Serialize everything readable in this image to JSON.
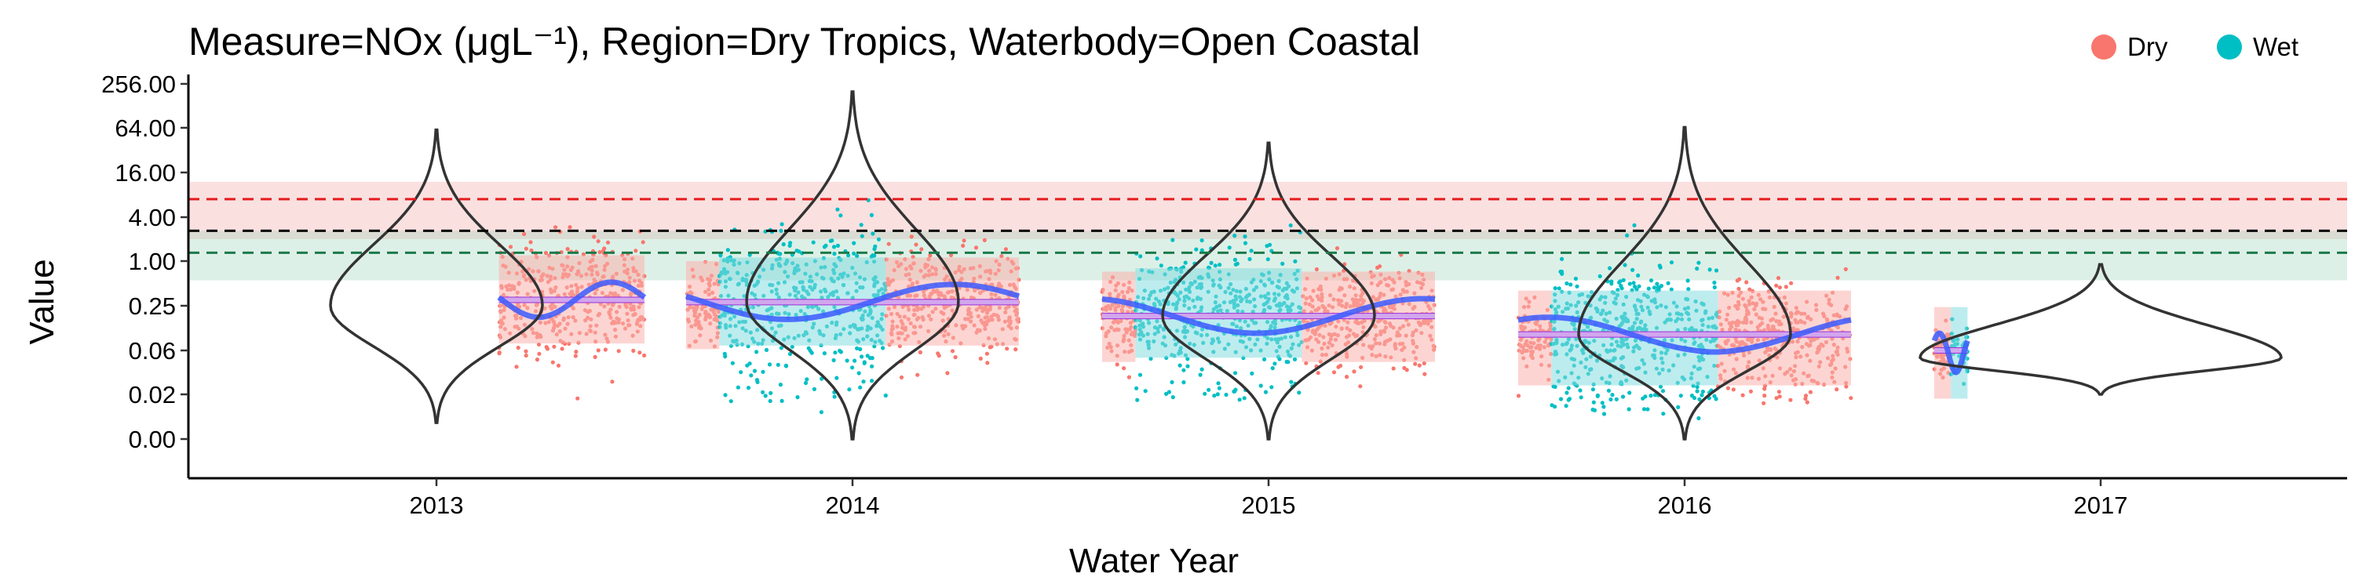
{
  "chart_data": {
    "type": "scatter",
    "title": "Measure=NOx (μgL⁻¹), Region=Dry Tropics, Waterbody=Open Coastal",
    "xlabel": "Water Year",
    "ylabel": "Value",
    "y_scale": "log",
    "y_ticks": [
      0.001,
      0.02,
      0.06,
      0.25,
      1,
      4,
      16,
      64,
      256
    ],
    "y_tick_labels": [
      "0.00",
      "0.02",
      "0.06",
      "0.25",
      "1.00",
      "4.00",
      "16.00",
      "64.00",
      "256.00"
    ],
    "x_tick_labels": [
      "2013",
      "2014",
      "2015",
      "2016",
      "2017"
    ],
    "legend": {
      "placement": "top-right",
      "entries": [
        {
          "label": "Dry",
          "color": "#F8766D"
        },
        {
          "label": "Wet",
          "color": "#00BFC4"
        }
      ]
    },
    "reference_lines": [
      {
        "value": 7.0,
        "color": "#e41a1c",
        "band": [
          2.0,
          12.0
        ]
      },
      {
        "value": 2.6,
        "color": "#000000"
      },
      {
        "value": 1.3,
        "color": "#1b7a4a",
        "band": [
          0.55,
          2.6
        ]
      }
    ],
    "water_years": [
      {
        "year": "2013",
        "start": 2012.7,
        "end": 2013.5,
        "violin_median": 0.25,
        "seasons": [
          {
            "season": "Dry",
            "start": 2013.15,
            "end": 2013.5,
            "median": 0.3,
            "min": 0.003,
            "max": 60
          }
        ],
        "annual_median": 0.3
      },
      {
        "year": "2014",
        "start": 2013.6,
        "end": 2014.4,
        "violin_median": 0.28,
        "seasons": [
          {
            "season": "Dry",
            "start": 2013.6,
            "end": 2013.68,
            "median": 0.25,
            "min": 0.01,
            "max": 4
          },
          {
            "season": "Wet",
            "start": 2013.68,
            "end": 2014.08,
            "median": 0.28,
            "min": 0.001,
            "max": 200
          },
          {
            "season": "Dry",
            "start": 2014.08,
            "end": 2014.4,
            "median": 0.28,
            "min": 0.002,
            "max": 8
          }
        ],
        "annual_median": 0.28
      },
      {
        "year": "2015",
        "start": 2014.6,
        "end": 2015.4,
        "violin_median": 0.18,
        "seasons": [
          {
            "season": "Dry",
            "start": 2014.6,
            "end": 2014.68,
            "median": 0.18,
            "min": 0.004,
            "max": 4
          },
          {
            "season": "Wet",
            "start": 2014.68,
            "end": 2015.08,
            "median": 0.2,
            "min": 0.001,
            "max": 40
          },
          {
            "season": "Dry",
            "start": 2015.08,
            "end": 2015.4,
            "median": 0.18,
            "min": 0.003,
            "max": 6
          }
        ],
        "annual_median": 0.18
      },
      {
        "year": "2016",
        "start": 2015.6,
        "end": 2016.4,
        "violin_median": 0.1,
        "seasons": [
          {
            "season": "Dry",
            "start": 2015.6,
            "end": 2015.68,
            "median": 0.1,
            "min": 0.005,
            "max": 2
          },
          {
            "season": "Wet",
            "start": 2015.68,
            "end": 2016.08,
            "median": 0.1,
            "min": 0.001,
            "max": 65
          },
          {
            "season": "Dry",
            "start": 2016.08,
            "end": 2016.4,
            "median": 0.1,
            "min": 0.003,
            "max": 12
          }
        ],
        "annual_median": 0.1
      },
      {
        "year": "2017",
        "start": 2016.6,
        "end": 2016.68,
        "violin_median": 0.05,
        "seasons": [
          {
            "season": "Dry",
            "start": 2016.6,
            "end": 2016.64,
            "median": 0.06,
            "min": 0.02,
            "max": 0.9
          },
          {
            "season": "Wet",
            "start": 2016.64,
            "end": 2016.68,
            "median": 0.06,
            "min": 0.02,
            "max": 0.9
          }
        ],
        "annual_median": 0.06
      }
    ]
  }
}
